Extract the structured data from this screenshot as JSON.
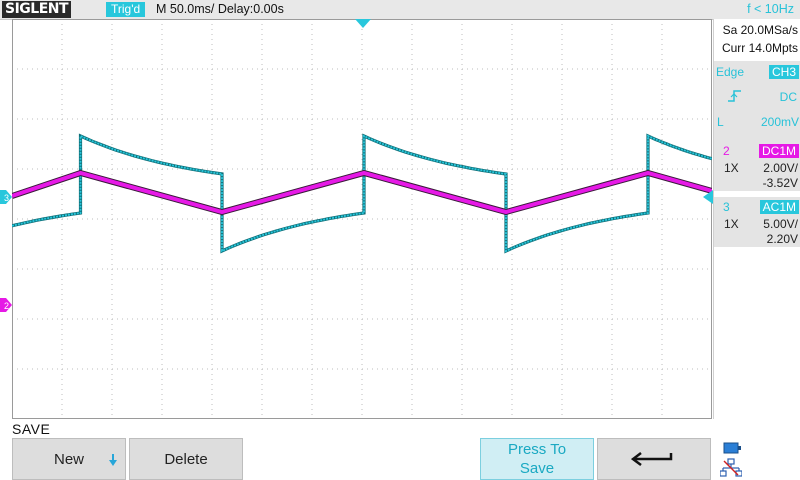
{
  "topbar": {
    "logo": "SIGLENT",
    "trigger_state": "Trig'd",
    "timebase": "M 50.0ms/ Delay:0.00s",
    "frequency": "f < 10Hz"
  },
  "acquisition": {
    "sample_rate": "Sa 20.0MSa/s",
    "memory_depth": "Curr 14.0Mpts"
  },
  "trigger": {
    "type_label": "Edge",
    "source": "CH3",
    "slope_icon": "rising-edge-icon",
    "coupling": "DC",
    "level_label": "L",
    "level_value": "200mV"
  },
  "channels": [
    {
      "number": "2",
      "coupling": "DC1M",
      "probe": "1X",
      "scale": "2.00V/",
      "offset": "-3.52V",
      "color": "#e619e6"
    },
    {
      "number": "3",
      "coupling": "AC1M",
      "probe": "1X",
      "scale": "5.00V/",
      "offset": "2.20V",
      "color": "#28c7dc"
    }
  ],
  "markers": {
    "ch2_marker": "2",
    "ch3_marker": "3"
  },
  "menu": {
    "title": "SAVE",
    "new_label": "New",
    "delete_label": "Delete",
    "save_line1": "Press To",
    "save_line2": "Save"
  },
  "icons": {
    "back": "return-arrow-icon",
    "storage": "usb-storage-icon",
    "network": "network-icon",
    "new_dropdown": "download-arrow-icon"
  },
  "colors": {
    "ch2": "#e619e6",
    "ch3": "#28c7dc",
    "ch3_trace_dark": "#0f6f78",
    "grid": "#bdbdbd",
    "accent": "#28c7dc"
  }
}
